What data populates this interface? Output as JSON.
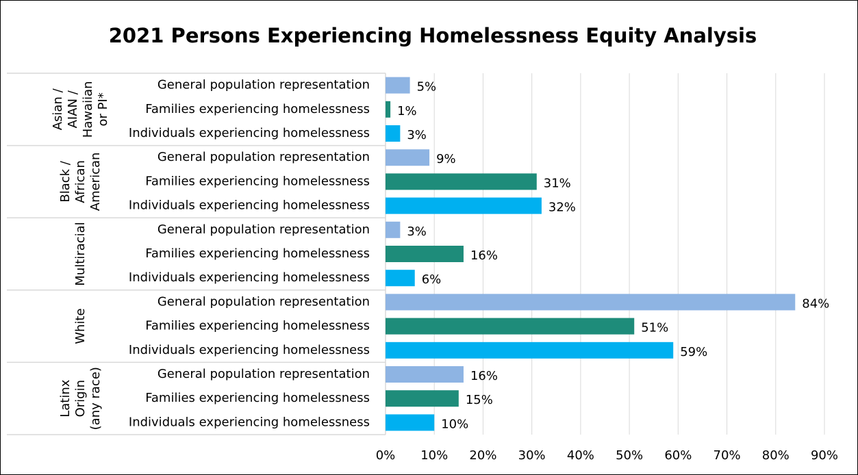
{
  "chart_data": {
    "type": "bar",
    "orientation": "horizontal",
    "title": "2021 Persons Experiencing Homelessness Equity Analysis",
    "groups": [
      {
        "lines": [
          "Asian /",
          "AIAN /",
          "Hawaiian",
          "or PI*"
        ]
      },
      {
        "lines": [
          "Black /",
          "African",
          "American"
        ]
      },
      {
        "lines": [
          "Multiracial"
        ]
      },
      {
        "lines": [
          "White"
        ]
      },
      {
        "lines": [
          "Latinx",
          "Origin",
          "(any race)"
        ]
      }
    ],
    "series": [
      {
        "name": "General population representation",
        "color": "#8eb4e3",
        "values": [
          5,
          9,
          3,
          84,
          16
        ],
        "value_labels": [
          "5%",
          "9%",
          "3%",
          "84%",
          "16%"
        ]
      },
      {
        "name": "Families experiencing homelessness",
        "color": "#1e8c7a",
        "values": [
          1,
          31,
          16,
          51,
          15
        ],
        "value_labels": [
          "1%",
          "31%",
          "16%",
          "51%",
          "15%"
        ]
      },
      {
        "name": "Individuals experiencing homelessness",
        "color": "#00b0f0",
        "values": [
          3,
          32,
          6,
          59,
          10
        ],
        "value_labels": [
          "3%",
          "32%",
          "6%",
          "59%",
          "10%"
        ]
      }
    ],
    "xlim": [
      0,
      90
    ],
    "xticks": [
      {
        "value": 0,
        "label": "0%"
      },
      {
        "value": 10,
        "label": "10%"
      },
      {
        "value": 20,
        "label": "20%"
      },
      {
        "value": 30,
        "label": "30%"
      },
      {
        "value": 40,
        "label": "40%"
      },
      {
        "value": 50,
        "label": "50%"
      },
      {
        "value": 60,
        "label": "60%"
      },
      {
        "value": 70,
        "label": "70%"
      },
      {
        "value": 80,
        "label": "80%"
      },
      {
        "value": 90,
        "label": "90%"
      }
    ],
    "grid": true
  }
}
